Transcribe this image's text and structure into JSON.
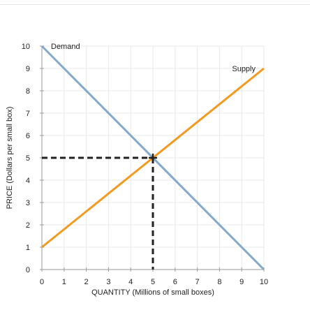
{
  "chart_data": {
    "type": "line",
    "xlabel": "QUANTITY (Millions of small boxes)",
    "ylabel": "PRICE (Dollars per small box)",
    "xlim": [
      0,
      10
    ],
    "ylim": [
      0,
      10
    ],
    "x_ticks": [
      "0",
      "1",
      "2",
      "3",
      "4",
      "5",
      "6",
      "7",
      "8",
      "9",
      "10"
    ],
    "y_ticks": [
      "0",
      "1",
      "2",
      "3",
      "4",
      "5",
      "6",
      "7",
      "8",
      "9",
      "10"
    ],
    "grid": true,
    "series": [
      {
        "name": "Demand",
        "x": [
          0,
          10
        ],
        "y": [
          10,
          0
        ],
        "color": "#84a9cb"
      },
      {
        "name": "Supply",
        "x": [
          0,
          10
        ],
        "y": [
          1,
          9
        ],
        "color": "#f29a1f"
      }
    ],
    "equilibrium": {
      "x": 5,
      "y": 5,
      "guide_color": "#222222"
    },
    "colors": {
      "grid": "#e9e9e9",
      "axis": "#9a9a9a",
      "text": "#222222"
    }
  }
}
